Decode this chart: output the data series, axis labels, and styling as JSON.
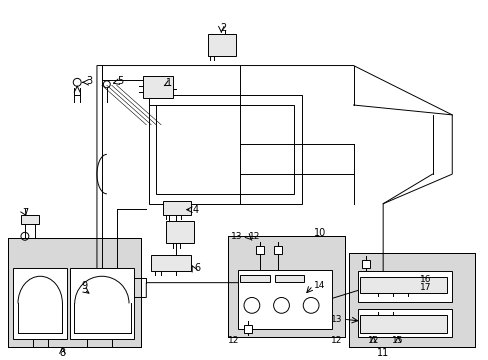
{
  "bg_color": "#ffffff",
  "line_color": "#000000",
  "gray_fill": "#d8d8d8",
  "light_gray": "#e8e8e8",
  "fig_width": 4.89,
  "fig_height": 3.6,
  "dpi": 100
}
